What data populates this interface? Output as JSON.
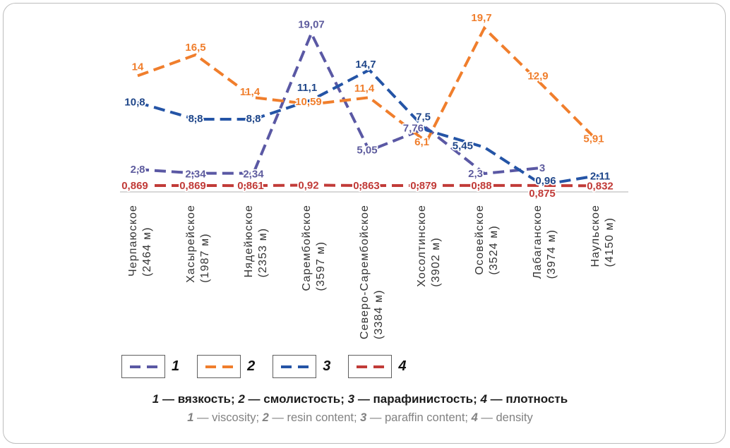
{
  "chart_data": {
    "type": "line",
    "title": "",
    "xlabel": "",
    "ylabel": "",
    "ylim": [
      0,
      20
    ],
    "grid": false,
    "legend_position": "bottom",
    "axis_color": "#d8d8d8",
    "categories": [
      {
        "name": "Черпаюское",
        "depth": "(2464 м)"
      },
      {
        "name": "Хасырейское",
        "depth": "(1987 м)"
      },
      {
        "name": "Нядейюское",
        "depth": "(2353 м)"
      },
      {
        "name": "Сарембойское",
        "depth": "(3597 м)"
      },
      {
        "name": "Северо-Сарембойское",
        "depth": "(3384 м)"
      },
      {
        "name": "Хосолтинское",
        "depth": "(3902 м)"
      },
      {
        "name": "Осовейское",
        "depth": "(3524 м)"
      },
      {
        "name": "Лабаганское",
        "depth": "(3974 м)"
      },
      {
        "name": "Наульское",
        "depth": "(4150 м)"
      }
    ],
    "series": [
      {
        "id": "viscosity",
        "legend_num": "1",
        "name_ru": "вязкость",
        "name_en": "viscosity",
        "color": "#5a58a4",
        "text_color": "#5e5c9e",
        "dash": true,
        "values": [
          2.8,
          2.34,
          2.34,
          19.07,
          5.05,
          7.76,
          2.3,
          3,
          null
        ],
        "labels": [
          "2,8",
          "2,34",
          "2,34",
          "19,07",
          "5,05",
          "7,76",
          "2,3",
          "3",
          ""
        ]
      },
      {
        "id": "resin",
        "legend_num": "2",
        "name_ru": "смолистость",
        "name_en": "resin content",
        "color": "#f07e2c",
        "text_color": "#f07e2c",
        "dash": true,
        "values": [
          14,
          16.5,
          11.4,
          10.59,
          11.4,
          6.1,
          19.7,
          12.9,
          5.91
        ],
        "labels": [
          "14",
          "16,5",
          "11,4",
          "10,59",
          "11,4",
          "6,1",
          "19,7",
          "12,9",
          "5,91"
        ]
      },
      {
        "id": "paraffin",
        "legend_num": "3",
        "name_ru": "парафинистость",
        "name_en": "paraffin content",
        "color": "#2454a6",
        "text_color": "#1f4689",
        "dash": true,
        "values": [
          10.8,
          8.8,
          8.8,
          11.1,
          14.7,
          7.5,
          5.45,
          0.96,
          2.11
        ],
        "labels": [
          "10,8",
          "8,8",
          "8,8",
          "11,1",
          "14,7",
          "7,5",
          "5,45",
          "0,96",
          "2.11"
        ]
      },
      {
        "id": "density",
        "legend_num": "4",
        "name_ru": "плотность",
        "name_en": "density",
        "color": "#c13b38",
        "text_color": "#c13b38",
        "dash": true,
        "values": [
          0.869,
          0.869,
          0.861,
          0.92,
          0.863,
          0.879,
          0.88,
          0.875,
          0.832
        ],
        "labels": [
          "0,869",
          "0,869",
          "0,861",
          "0,92",
          "0,863",
          "0,879",
          "0,88",
          "0,875",
          "0,832"
        ]
      }
    ]
  },
  "legend": {
    "items": [
      {
        "num": "1"
      },
      {
        "num": "2"
      },
      {
        "num": "3"
      },
      {
        "num": "4"
      }
    ]
  },
  "caption_ru": {
    "parts": [
      {
        "num": "1",
        "text": " — вязкость; "
      },
      {
        "num": "2",
        "text": " — смолистость; "
      },
      {
        "num": "3",
        "text": " — парафинистость; "
      },
      {
        "num": "4",
        "text": " — плотность"
      }
    ]
  },
  "caption_en": {
    "parts": [
      {
        "num": "1",
        "text": " — viscosity; "
      },
      {
        "num": "2",
        "text": " — resin content; "
      },
      {
        "num": "3",
        "text": " — paraffin content; "
      },
      {
        "num": "4",
        "text": " — density"
      }
    ]
  }
}
